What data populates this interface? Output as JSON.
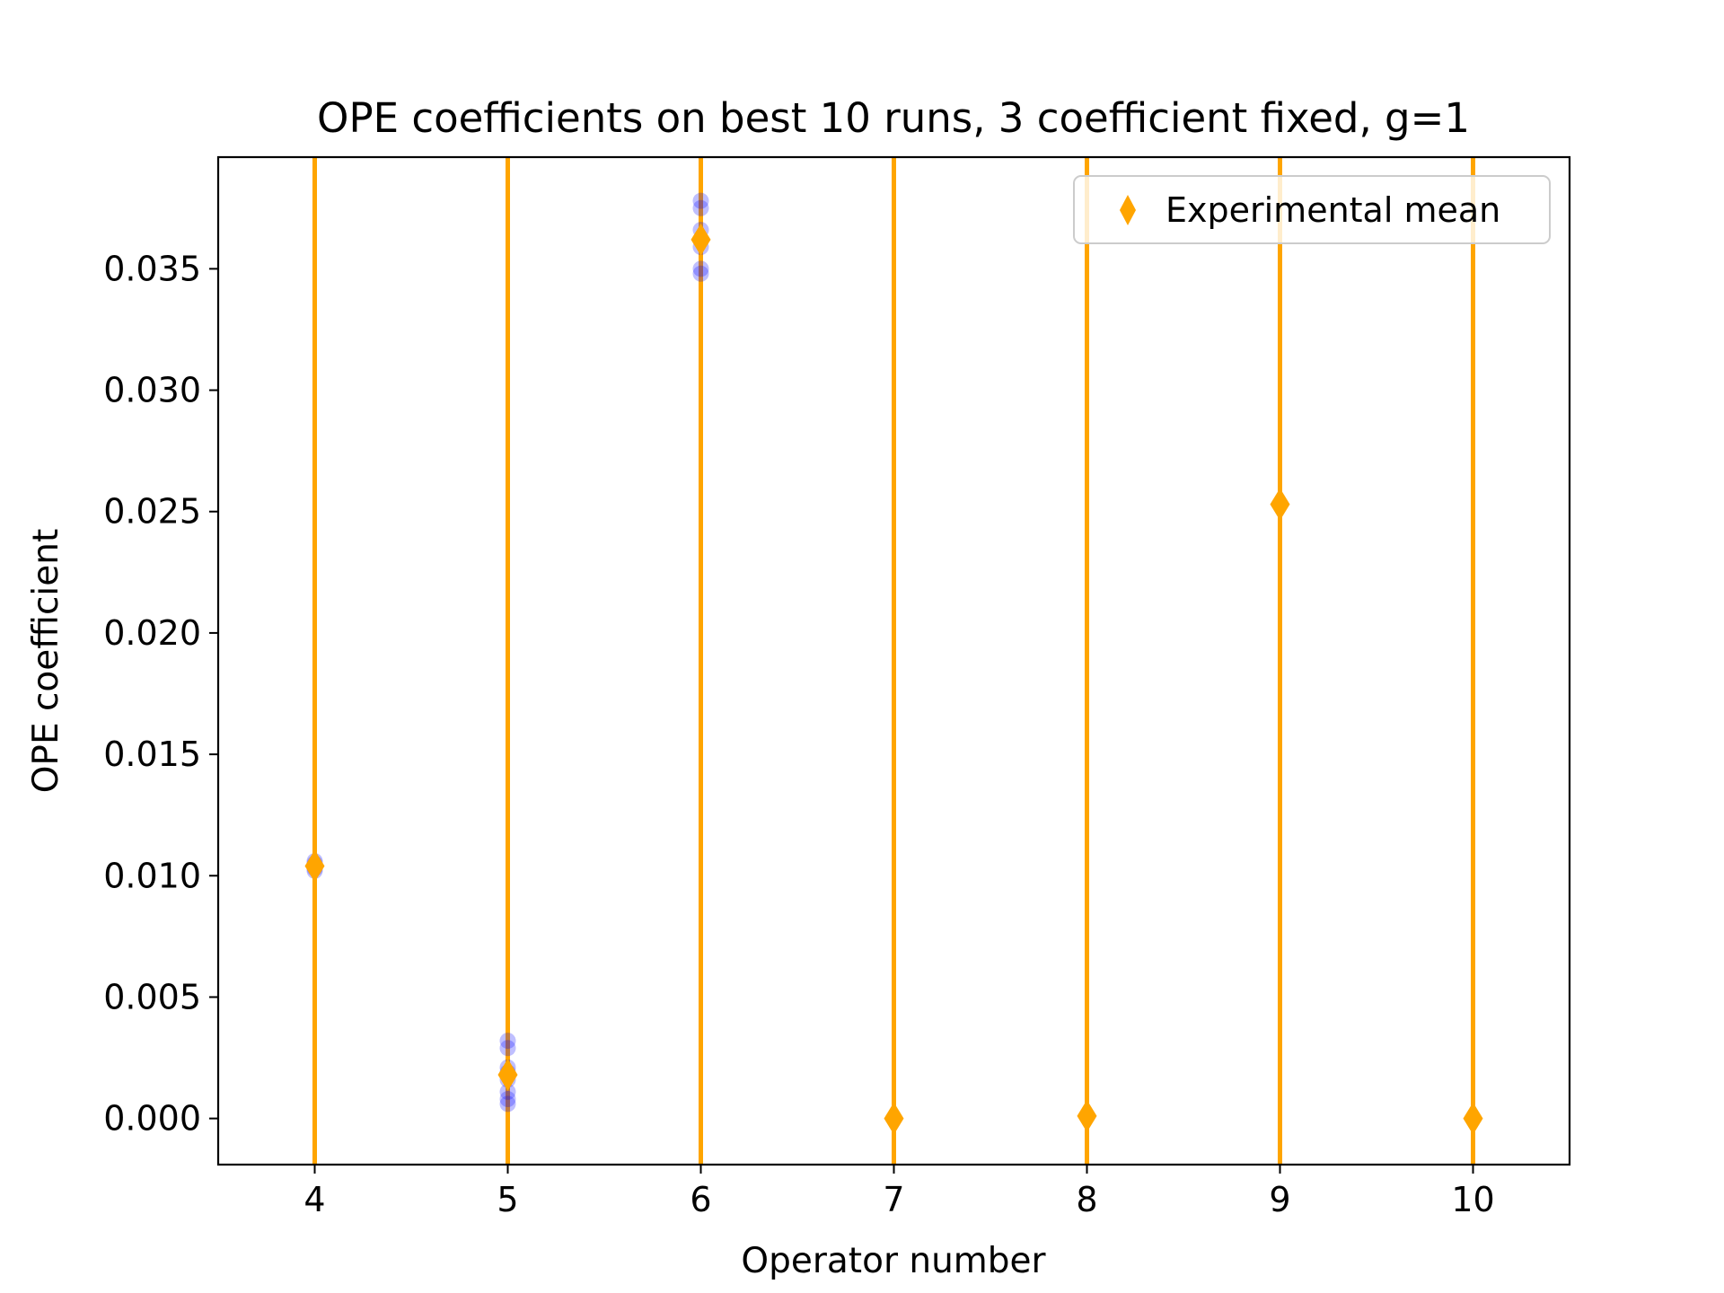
{
  "chart_data": {
    "type": "scatter",
    "title": "OPE coefficients on best 10 runs, 3 coefficient fixed, g=1",
    "xlabel": "Operator number",
    "ylabel": "OPE coefficient",
    "xlim": [
      3.5,
      10.5
    ],
    "ylim": [
      -0.0019,
      0.0396
    ],
    "x_ticks": [
      "4",
      "5",
      "6",
      "7",
      "8",
      "9",
      "10"
    ],
    "x_tick_values": [
      4,
      5,
      6,
      7,
      8,
      9,
      10
    ],
    "y_ticks": [
      "0.000",
      "0.005",
      "0.010",
      "0.015",
      "0.020",
      "0.025",
      "0.030",
      "0.035"
    ],
    "y_tick_values": [
      0.0,
      0.005,
      0.01,
      0.015,
      0.02,
      0.025,
      0.03,
      0.035
    ],
    "grid": false,
    "legend": {
      "position": "upper right",
      "entries": [
        "Experimental mean"
      ]
    },
    "vertical_lines": {
      "x": [
        4,
        5,
        6,
        7,
        8,
        9,
        10
      ],
      "color": "#FFA500"
    },
    "series": [
      {
        "name": "",
        "marker": "circle",
        "color": "#0000FF",
        "opacity": 0.25,
        "points": [
          {
            "x": 4,
            "y": 0.0102
          },
          {
            "x": 4,
            "y": 0.0103
          },
          {
            "x": 4,
            "y": 0.0104
          },
          {
            "x": 4,
            "y": 0.0105
          },
          {
            "x": 4,
            "y": 0.0106
          },
          {
            "x": 5,
            "y": 0.0032
          },
          {
            "x": 5,
            "y": 0.0029
          },
          {
            "x": 5,
            "y": 0.0021
          },
          {
            "x": 5,
            "y": 0.0019
          },
          {
            "x": 5,
            "y": 0.0016
          },
          {
            "x": 5,
            "y": 0.0011
          },
          {
            "x": 5,
            "y": 0.0008
          },
          {
            "x": 5,
            "y": 0.0006
          },
          {
            "x": 6,
            "y": 0.0378
          },
          {
            "x": 6,
            "y": 0.0375
          },
          {
            "x": 6,
            "y": 0.0366
          },
          {
            "x": 6,
            "y": 0.0362
          },
          {
            "x": 6,
            "y": 0.0359
          },
          {
            "x": 6,
            "y": 0.035
          },
          {
            "x": 6,
            "y": 0.0348
          },
          {
            "x": 7,
            "y": 0.0
          },
          {
            "x": 8,
            "y": 0.0001
          },
          {
            "x": 9,
            "y": 0.0253
          },
          {
            "x": 10,
            "y": 0.0
          }
        ]
      },
      {
        "name": "Experimental mean",
        "marker": "diamond",
        "color": "#FFA500",
        "points": [
          {
            "x": 4,
            "y": 0.0104
          },
          {
            "x": 5,
            "y": 0.0018
          },
          {
            "x": 6,
            "y": 0.0362
          },
          {
            "x": 7,
            "y": 0.0
          },
          {
            "x": 8,
            "y": 0.0001
          },
          {
            "x": 9,
            "y": 0.0253
          },
          {
            "x": 10,
            "y": 0.0
          }
        ]
      }
    ]
  }
}
